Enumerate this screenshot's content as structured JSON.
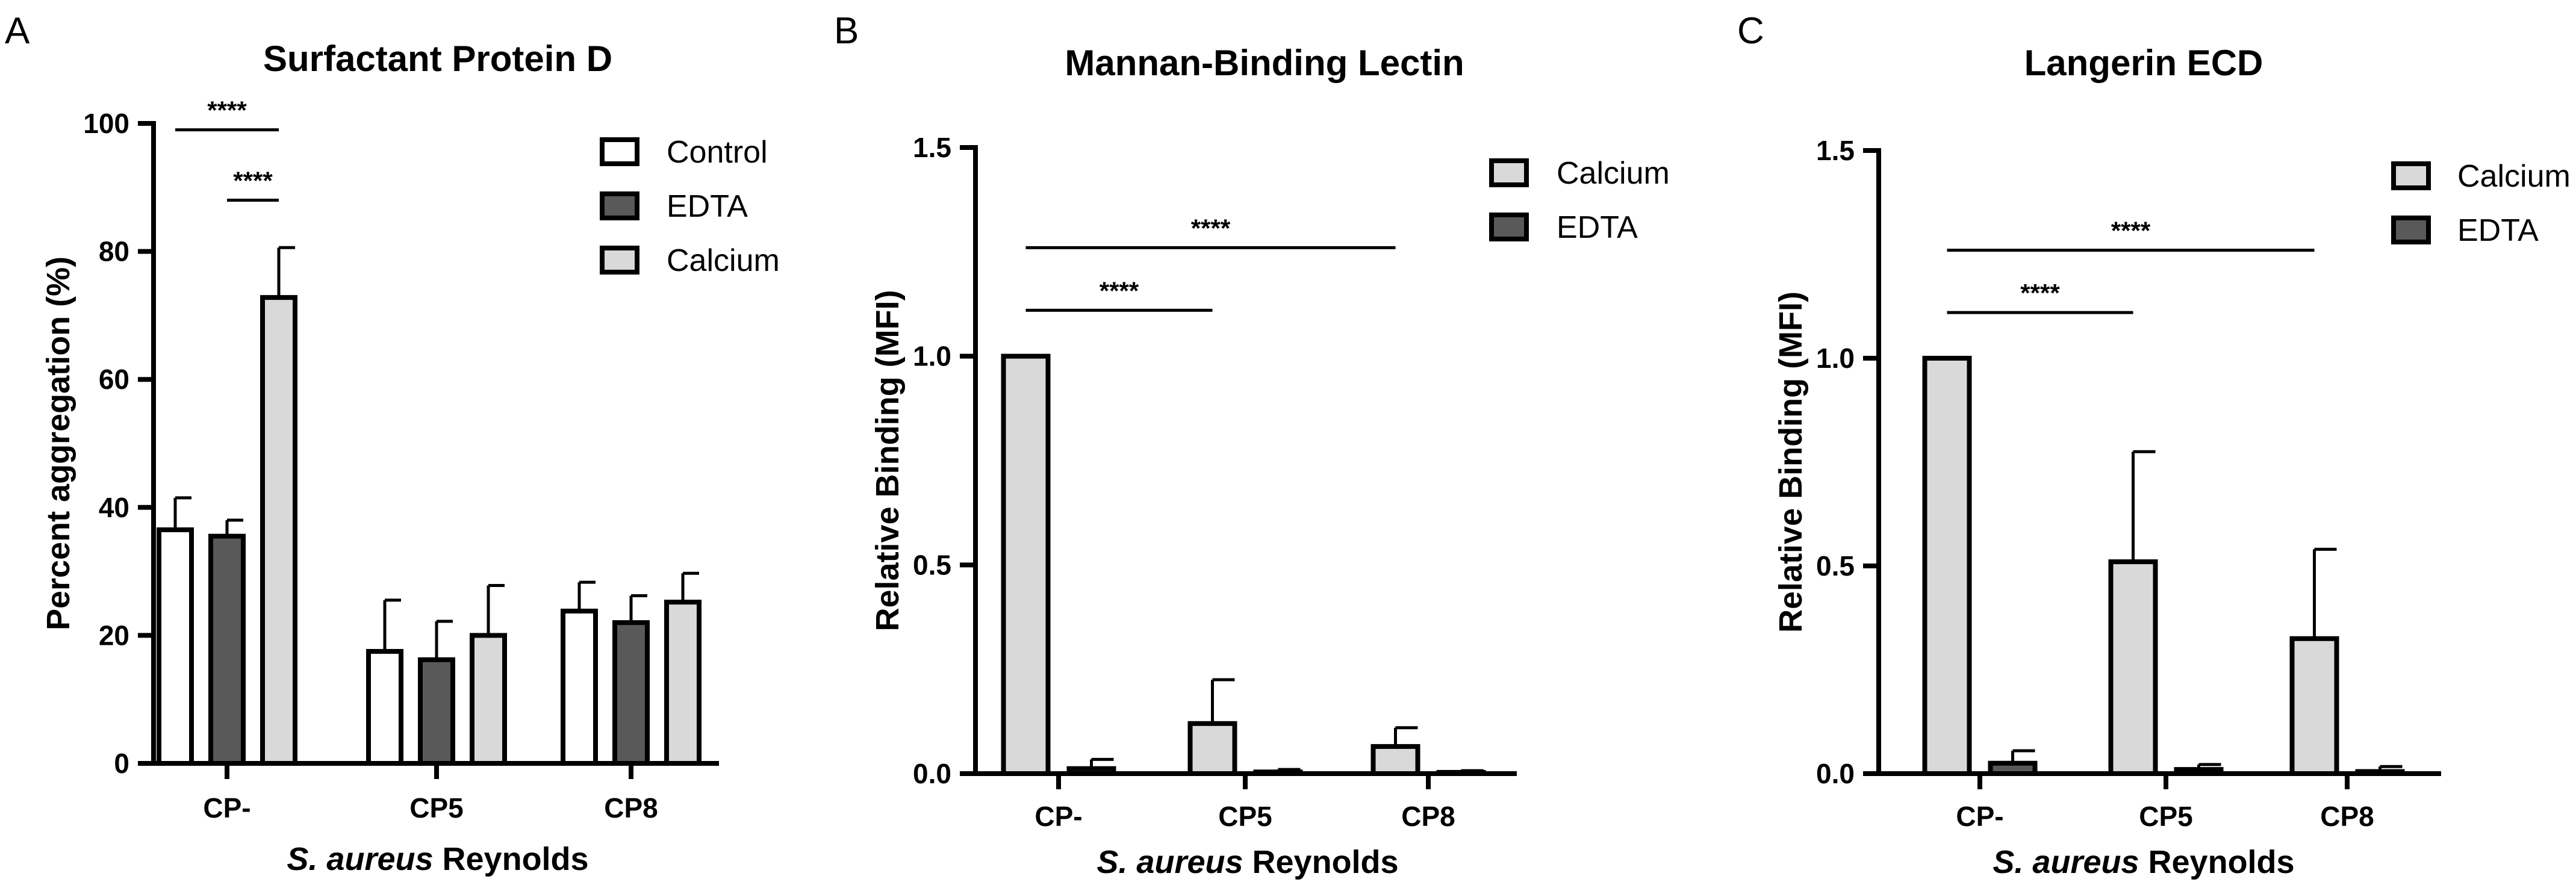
{
  "figure": {
    "panel_letters": [
      "A",
      "B",
      "C"
    ],
    "colors": {
      "Control": "#ffffff",
      "EDTA": "#595959",
      "Calcium": "#d9d9d9",
      "stroke": "#000000"
    }
  },
  "chart_data": [
    {
      "type": "bar",
      "title": "Surfactant Protein D",
      "ylabel": "Percent aggregation (%)",
      "xlabel_italic": "S. aureus",
      "xlabel_rest": " Reynolds",
      "categories": [
        "CP-",
        "CP5",
        "CP8"
      ],
      "ylim": [
        0,
        100
      ],
      "yticks": [
        0,
        20,
        40,
        60,
        80,
        100
      ],
      "ytick_labels": [
        "0",
        "20",
        "40",
        "60",
        "80",
        "100"
      ],
      "legend_position": "top-right",
      "series": [
        {
          "name": "Control",
          "values": [
            36.5,
            17.5,
            23.8
          ],
          "errors": [
            5.0,
            8.0,
            4.5
          ]
        },
        {
          "name": "EDTA",
          "values": [
            35.5,
            16.2,
            22.0
          ],
          "errors": [
            2.5,
            6.0,
            4.2
          ]
        },
        {
          "name": "Calcium",
          "values": [
            72.8,
            20.0,
            25.2
          ],
          "errors": [
            7.8,
            7.8,
            4.5
          ]
        }
      ],
      "significance": [
        {
          "label": "****",
          "from": [
            0,
            0
          ],
          "to": [
            0,
            2
          ],
          "y": 99
        },
        {
          "label": "****",
          "from": [
            0,
            1
          ],
          "to": [
            0,
            2
          ],
          "y": 88
        }
      ]
    },
    {
      "type": "bar",
      "title": "Mannan-Binding Lectin",
      "ylabel": "Relative Binding (MFI)",
      "xlabel_italic": "S. aureus",
      "xlabel_rest": " Reynolds",
      "categories": [
        "CP-",
        "CP5",
        "CP8"
      ],
      "ylim": [
        0,
        1.5
      ],
      "yticks": [
        0,
        0.5,
        1.0,
        1.5
      ],
      "ytick_labels": [
        "0.0",
        "0.5",
        "1.0",
        "1.5"
      ],
      "legend_position": "top-right",
      "series": [
        {
          "name": "Calcium",
          "values": [
            1.0,
            0.12,
            0.065
          ],
          "errors": [
            0,
            0.105,
            0.045
          ]
        },
        {
          "name": "EDTA",
          "values": [
            0.012,
            0.004,
            0.003
          ],
          "errors": [
            0.022,
            0.006,
            0.004
          ]
        }
      ],
      "significance": [
        {
          "label": "****",
          "from": [
            0,
            0
          ],
          "to": [
            2,
            0
          ],
          "y": 1.26
        },
        {
          "label": "****",
          "from": [
            0,
            0
          ],
          "to": [
            1,
            0
          ],
          "y": 1.11
        }
      ]
    },
    {
      "type": "bar",
      "title": "Langerin ECD",
      "ylabel": "Relative Binding (MFI)",
      "xlabel_italic": "S. aureus",
      "xlabel_rest": " Reynolds",
      "categories": [
        "CP-",
        "CP5",
        "CP8"
      ],
      "ylim": [
        0,
        1.5
      ],
      "yticks": [
        0,
        0.5,
        1.0,
        1.5
      ],
      "ytick_labels": [
        "0.0",
        "0.5",
        "1.0",
        "1.5"
      ],
      "legend_position": "top-right",
      "series": [
        {
          "name": "Calcium",
          "values": [
            1.0,
            0.51,
            0.325
          ],
          "errors": [
            0,
            0.265,
            0.215
          ]
        },
        {
          "name": "EDTA",
          "values": [
            0.025,
            0.01,
            0.005
          ],
          "errors": [
            0.03,
            0.012,
            0.012
          ]
        }
      ],
      "significance": [
        {
          "label": "****",
          "from": [
            0,
            0
          ],
          "to": [
            2,
            0
          ],
          "y": 1.26
        },
        {
          "label": "****",
          "from": [
            0,
            0
          ],
          "to": [
            1,
            0
          ],
          "y": 1.11
        }
      ]
    }
  ]
}
